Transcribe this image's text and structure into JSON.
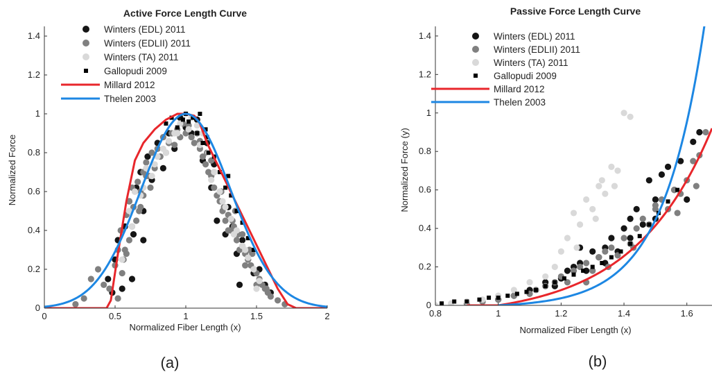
{
  "colors": {
    "edl": "#151515",
    "edlii": "#808080",
    "ta": "#d9d9d9",
    "gallopudi": "#000000",
    "millard": "#e8262b",
    "thelen": "#1d87e3"
  },
  "chart_data": [
    {
      "type": "scatter",
      "panel_label": "(a)",
      "title": "Active Force Length Curve",
      "xlabel": "Normalized Fiber Length (x)",
      "ylabel": "Normalized Force",
      "xlim": [
        0,
        2
      ],
      "ylim": [
        0,
        1.45
      ],
      "xticks": [
        0,
        0.5,
        1,
        1.5,
        2
      ],
      "xtick_labels": [
        "0",
        "0.5",
        "1",
        "1.5",
        "2"
      ],
      "yticks": [
        0,
        0.2,
        0.4,
        0.6,
        0.8,
        1,
        1.2,
        1.4
      ],
      "ytick_labels": [
        "0",
        "0.2",
        "0.4",
        "0.6",
        "0.8",
        "1",
        "1.2",
        "1.4"
      ],
      "grid": false,
      "legend_position": "top-center",
      "legend": [
        "Winters (EDL) 2011",
        "Winters (EDLII) 2011",
        "Winters (TA) 2011",
        "Gallopudi 2009",
        "Millard 2012",
        "Thelen 2003"
      ],
      "series": [
        {
          "name": "Winters (EDL) 2011",
          "kind": "points",
          "color_key": "edl",
          "marker": "circle",
          "x": [
            0.48,
            0.5,
            0.52,
            0.55,
            0.57,
            0.6,
            0.63,
            0.65,
            0.68,
            0.7,
            0.73,
            0.76,
            0.8,
            0.84,
            0.88,
            0.92,
            0.96,
            1.0,
            1.04,
            1.08,
            1.12,
            1.15,
            1.18,
            1.2,
            1.22,
            1.25,
            1.28,
            1.3,
            1.33,
            1.36,
            1.4,
            1.44,
            1.48,
            1.52,
            1.56,
            1.6,
            0.45,
            1.38,
            0.7,
            0.62
          ],
          "y": [
            0.08,
            0.25,
            0.35,
            0.1,
            0.42,
            0.55,
            0.38,
            0.62,
            0.7,
            0.5,
            0.78,
            0.66,
            0.85,
            0.72,
            0.9,
            0.82,
            0.98,
            0.93,
            0.9,
            0.97,
            0.76,
            0.85,
            0.62,
            0.74,
            0.45,
            0.6,
            0.38,
            0.52,
            0.42,
            0.28,
            0.35,
            0.25,
            0.18,
            0.2,
            0.12,
            0.08,
            0.15,
            0.12,
            0.35,
            0.15
          ]
        },
        {
          "name": "Winters (EDLII) 2011",
          "kind": "points",
          "color_key": "edlii",
          "marker": "circle",
          "x": [
            0.22,
            0.28,
            0.33,
            0.38,
            0.42,
            0.46,
            0.5,
            0.52,
            0.54,
            0.56,
            0.58,
            0.6,
            0.62,
            0.64,
            0.66,
            0.68,
            0.7,
            0.72,
            0.74,
            0.76,
            0.78,
            0.8,
            0.82,
            0.84,
            0.86,
            0.88,
            0.9,
            0.92,
            0.94,
            0.96,
            0.98,
            1.0,
            1.02,
            1.04,
            1.06,
            1.08,
            1.1,
            1.12,
            1.14,
            1.16,
            1.18,
            1.2,
            1.22,
            1.24,
            1.26,
            1.28,
            1.3,
            1.32,
            1.34,
            1.36,
            1.38,
            1.4,
            1.42,
            1.44,
            1.46,
            1.48,
            1.5,
            1.52,
            1.54,
            1.56,
            1.58,
            1.6,
            1.65,
            1.7,
            0.55,
            0.6,
            0.65,
            0.7,
            0.75,
            1.25,
            1.3,
            1.35,
            1.4,
            1.45,
            0.58,
            0.63,
            0.68,
            1.15,
            1.2,
            1.33,
            1.42,
            1.5,
            0.52,
            0.57,
            0.62,
            0.67,
            0.72,
            1.1,
            1.18,
            1.27,
            1.37,
            1.47,
            1.57
          ],
          "y": [
            0.02,
            0.05,
            0.15,
            0.2,
            0.12,
            0.1,
            0.22,
            0.3,
            0.4,
            0.25,
            0.48,
            0.55,
            0.42,
            0.6,
            0.65,
            0.52,
            0.7,
            0.75,
            0.68,
            0.8,
            0.72,
            0.82,
            0.78,
            0.88,
            0.8,
            0.85,
            0.9,
            0.84,
            0.92,
            0.88,
            0.95,
            0.9,
            0.94,
            0.88,
            0.85,
            0.9,
            0.82,
            0.78,
            0.74,
            0.7,
            0.68,
            0.62,
            0.58,
            0.55,
            0.5,
            0.45,
            0.48,
            0.4,
            0.42,
            0.35,
            0.3,
            0.32,
            0.28,
            0.25,
            0.22,
            0.2,
            0.18,
            0.15,
            0.12,
            0.1,
            0.08,
            0.06,
            0.04,
            0.02,
            0.18,
            0.35,
            0.45,
            0.58,
            0.62,
            0.6,
            0.4,
            0.5,
            0.38,
            0.3,
            0.28,
            0.52,
            0.6,
            0.8,
            0.7,
            0.45,
            0.22,
            0.12,
            0.05,
            0.3,
            0.62,
            0.5,
            0.68,
            0.86,
            0.76,
            0.52,
            0.38,
            0.28,
            0.1
          ]
        },
        {
          "name": "Winters (TA) 2011",
          "kind": "points",
          "color_key": "ta",
          "marker": "circle",
          "x": [
            0.55,
            0.6,
            0.64,
            0.68,
            0.72,
            0.76,
            0.8,
            0.84,
            0.88,
            0.92,
            0.96,
            1.0,
            1.04,
            1.08,
            1.12,
            1.16,
            1.2,
            1.24,
            1.28,
            1.32,
            1.36,
            1.4,
            1.44,
            1.48,
            1.52,
            0.62,
            0.7,
            0.78,
            0.86,
            0.94,
            1.02,
            1.1,
            1.18,
            1.26,
            1.34,
            1.42,
            1.5
          ],
          "y": [
            0.25,
            0.5,
            0.6,
            0.58,
            0.72,
            0.68,
            0.78,
            0.82,
            0.86,
            0.9,
            0.95,
            1.0,
            0.98,
            0.94,
            0.9,
            0.8,
            0.7,
            0.6,
            0.52,
            0.46,
            0.4,
            0.32,
            0.26,
            0.2,
            0.14,
            0.42,
            0.62,
            0.74,
            0.8,
            0.9,
            0.92,
            0.84,
            0.66,
            0.55,
            0.38,
            0.3,
            0.1
          ]
        },
        {
          "name": "Gallopudi 2009",
          "kind": "points",
          "color_key": "gallopudi",
          "marker": "square",
          "x": [
            0.86,
            0.9,
            0.94,
            0.98,
            1.0,
            1.02,
            1.05,
            1.08,
            1.1,
            1.12,
            1.14,
            1.16,
            1.2,
            1.24,
            1.28,
            1.32,
            1.36,
            1.4,
            1.44,
            1.48,
            1.3,
            1.15
          ],
          "y": [
            0.95,
            0.98,
            0.93,
            0.97,
            1.0,
            0.96,
            0.98,
            0.9,
            1.0,
            0.85,
            0.92,
            0.8,
            0.78,
            0.7,
            0.62,
            0.58,
            0.5,
            0.44,
            0.36,
            0.3,
            0.68,
            0.88
          ]
        },
        {
          "name": "Millard 2012",
          "kind": "line",
          "color_key": "millard",
          "width": 3,
          "x": [
            0,
            0.44,
            0.47,
            0.52,
            0.58,
            0.64,
            0.7,
            0.78,
            0.86,
            0.94,
            1.0,
            1.06,
            1.1,
            1.15,
            1.25,
            1.35,
            1.45,
            1.55,
            1.65,
            1.72,
            1.78,
            2.0
          ],
          "y": [
            0,
            0,
            0.04,
            0.28,
            0.55,
            0.76,
            0.85,
            0.92,
            0.97,
            1.0,
            1.0,
            0.99,
            0.95,
            0.85,
            0.7,
            0.55,
            0.4,
            0.25,
            0.1,
            0.02,
            0,
            0
          ]
        },
        {
          "name": "Thelen 2003",
          "kind": "curve",
          "color_key": "thelen",
          "width": 3,
          "function": "gaussian",
          "params": {
            "center": 1.0,
            "width": 0.45
          },
          "x_range": [
            0,
            2
          ]
        }
      ]
    },
    {
      "type": "scatter",
      "panel_label": "(b)",
      "title": "Passive Force Length Curve",
      "xlabel": "Normalized Fiber Length (x)",
      "ylabel": "Normalized Force (y)",
      "xlim": [
        0.8,
        1.68
      ],
      "ylim": [
        0,
        1.45
      ],
      "xticks": [
        0.8,
        1,
        1.2,
        1.4,
        1.6
      ],
      "xtick_labels": [
        "0.8",
        "1",
        "1.2",
        "1.4",
        "1.6"
      ],
      "yticks": [
        0,
        0.2,
        0.4,
        0.6,
        0.8,
        1,
        1.2,
        1.4
      ],
      "ytick_labels": [
        "0",
        "0.2",
        "0.4",
        "0.6",
        "0.8",
        "1",
        "1.2",
        "1.4"
      ],
      "grid": false,
      "legend_position": "top-left",
      "legend": [
        "Winters (EDL) 2011",
        "Winters (EDLII) 2011",
        "Winters (TA) 2011",
        "Gallopudi 2009",
        "Millard 2012",
        "Thelen 2003"
      ],
      "series": [
        {
          "name": "Winters (EDL) 2011",
          "kind": "points",
          "color_key": "edl",
          "marker": "circle",
          "x": [
            0.95,
            1.0,
            1.05,
            1.1,
            1.15,
            1.18,
            1.2,
            1.22,
            1.24,
            1.26,
            1.28,
            1.3,
            1.32,
            1.34,
            1.36,
            1.38,
            1.4,
            1.42,
            1.44,
            1.46,
            1.48,
            1.5,
            1.52,
            1.54,
            1.56,
            1.58,
            1.6,
            1.62,
            1.64,
            1.26,
            1.34,
            1.42,
            1.5
          ],
          "y": [
            0.02,
            0.03,
            0.05,
            0.08,
            0.12,
            0.1,
            0.14,
            0.18,
            0.2,
            0.22,
            0.18,
            0.28,
            0.25,
            0.3,
            0.35,
            0.28,
            0.4,
            0.45,
            0.5,
            0.42,
            0.65,
            0.55,
            0.68,
            0.72,
            0.6,
            0.75,
            0.55,
            0.85,
            0.9,
            0.3,
            0.22,
            0.35,
            0.45
          ]
        },
        {
          "name": "Winters (EDLII) 2011",
          "kind": "points",
          "color_key": "edlii",
          "marker": "circle",
          "x": [
            0.9,
            0.95,
            1.0,
            1.05,
            1.1,
            1.12,
            1.15,
            1.18,
            1.2,
            1.22,
            1.24,
            1.26,
            1.28,
            1.3,
            1.32,
            1.34,
            1.36,
            1.38,
            1.4,
            1.42,
            1.44,
            1.46,
            1.48,
            1.5,
            1.52,
            1.54,
            1.56,
            1.58,
            1.6,
            1.62,
            1.64,
            1.66,
            1.28,
            1.35,
            1.43,
            1.5,
            1.57,
            1.63
          ],
          "y": [
            0.01,
            0.02,
            0.03,
            0.05,
            0.06,
            0.08,
            0.1,
            0.12,
            0.15,
            0.12,
            0.18,
            0.2,
            0.22,
            0.18,
            0.25,
            0.28,
            0.3,
            0.26,
            0.35,
            0.32,
            0.4,
            0.45,
            0.42,
            0.5,
            0.55,
            0.5,
            0.6,
            0.58,
            0.65,
            0.75,
            0.78,
            0.9,
            0.12,
            0.2,
            0.3,
            0.52,
            0.48,
            0.62
          ]
        },
        {
          "name": "Winters (TA) 2011",
          "kind": "points",
          "color_key": "ta",
          "marker": "circle",
          "x": [
            0.8,
            0.85,
            0.9,
            0.95,
            1.0,
            1.05,
            1.1,
            1.15,
            1.18,
            1.2,
            1.22,
            1.24,
            1.26,
            1.28,
            1.3,
            1.32,
            1.34,
            1.36,
            1.38,
            1.4,
            1.42,
            1.25,
            1.31,
            1.37,
            1.33
          ],
          "y": [
            0.0,
            0.01,
            0.02,
            0.03,
            0.05,
            0.08,
            0.12,
            0.15,
            0.2,
            0.28,
            0.35,
            0.48,
            0.42,
            0.55,
            0.5,
            0.62,
            0.58,
            0.72,
            0.7,
            1.0,
            0.98,
            0.3,
            0.45,
            0.62,
            0.65
          ]
        },
        {
          "name": "Gallopudi 2009",
          "kind": "points",
          "color_key": "gallopudi",
          "marker": "square",
          "x": [
            0.82,
            0.86,
            0.9,
            0.94,
            0.97,
            1.0,
            1.03,
            1.06,
            1.09,
            1.12,
            1.15,
            1.18,
            1.21,
            1.24,
            1.27,
            1.3,
            1.33,
            1.36,
            1.39,
            1.42,
            1.45,
            1.48,
            1.51,
            1.54,
            1.57
          ],
          "y": [
            0.01,
            0.02,
            0.02,
            0.03,
            0.04,
            0.04,
            0.05,
            0.06,
            0.07,
            0.08,
            0.1,
            0.12,
            0.14,
            0.16,
            0.18,
            0.2,
            0.22,
            0.25,
            0.28,
            0.32,
            0.36,
            0.42,
            0.48,
            0.54,
            0.6
          ]
        },
        {
          "name": "Millard 2012",
          "kind": "curve",
          "color_key": "millard",
          "width": 3,
          "function": "exp_shift",
          "params": {
            "start": 1.0,
            "k": 4.0,
            "end": 1.68,
            "y_end": 0.92
          },
          "x_range": [
            0.9,
            1.68
          ]
        },
        {
          "name": "Thelen 2003",
          "kind": "curve",
          "color_key": "thelen",
          "width": 3,
          "function": "exp_shift",
          "params": {
            "start": 1.0,
            "k": 7.5,
            "end": 1.66,
            "y_end": 1.5
          },
          "x_range": [
            1.0,
            1.66
          ]
        }
      ]
    }
  ]
}
